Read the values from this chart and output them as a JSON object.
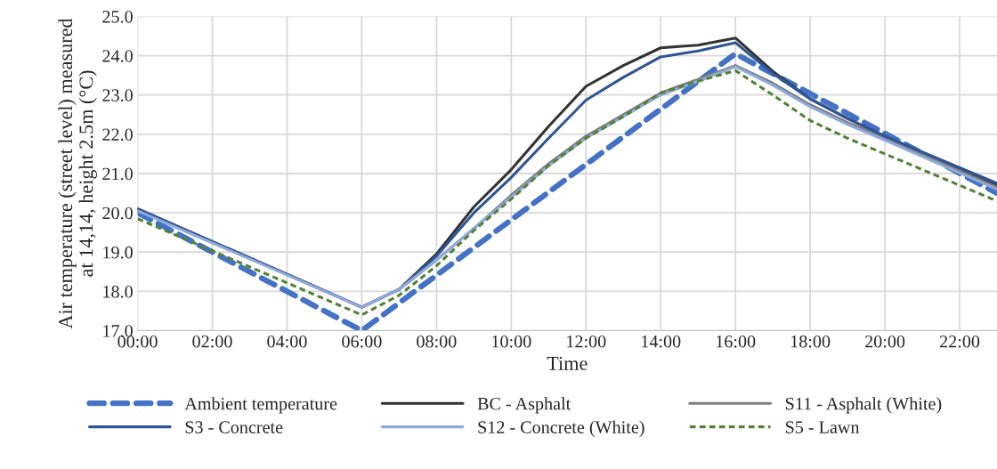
{
  "chart_data": {
    "type": "line",
    "xlabel": "Time",
    "ylabel": "Air temperature (street level) measured\nat 14,14, height 2.5m (°C)",
    "x": [
      0,
      6,
      7,
      8,
      9,
      10,
      11,
      12,
      13,
      14,
      15,
      16,
      17,
      18,
      19,
      20,
      23
    ],
    "xlim": [
      0,
      23
    ],
    "xticks": [
      {
        "value": 0,
        "label": "00:00"
      },
      {
        "value": 2,
        "label": "02:00"
      },
      {
        "value": 4,
        "label": "04:00"
      },
      {
        "value": 6,
        "label": "06:00"
      },
      {
        "value": 8,
        "label": "08:00"
      },
      {
        "value": 10,
        "label": "10:00"
      },
      {
        "value": 12,
        "label": "12:00"
      },
      {
        "value": 14,
        "label": "14:00"
      },
      {
        "value": 16,
        "label": "16:00"
      },
      {
        "value": 18,
        "label": "18:00"
      },
      {
        "value": 20,
        "label": "20:00"
      },
      {
        "value": 22,
        "label": "22:00"
      }
    ],
    "ylim": [
      17,
      25
    ],
    "yticks": [
      {
        "value": 17,
        "label": "17.0"
      },
      {
        "value": 18,
        "label": "18.0"
      },
      {
        "value": 19,
        "label": "19.0"
      },
      {
        "value": 20,
        "label": "20.0"
      },
      {
        "value": 21,
        "label": "21.0"
      },
      {
        "value": 22,
        "label": "22.0"
      },
      {
        "value": 23,
        "label": "23.0"
      },
      {
        "value": 24,
        "label": "24.0"
      },
      {
        "value": 25,
        "label": "25.0"
      }
    ],
    "grid": true,
    "legend": "bottom",
    "marker": "none",
    "series": [
      {
        "name": "Ambient temperature",
        "color": "#4472c4",
        "line_style": "dashed",
        "x": [
          0,
          6,
          16,
          23
        ],
        "values": [
          20.0,
          17.0,
          24.05,
          20.5
        ]
      },
      {
        "name": "BC - Asphalt",
        "color": "#333333",
        "line_style": "solid",
        "values": [
          20.1,
          17.6,
          18.05,
          18.95,
          20.15,
          21.1,
          22.2,
          23.22,
          23.75,
          24.2,
          24.27,
          24.45,
          23.6,
          22.9,
          22.4,
          21.95,
          20.7
        ]
      },
      {
        "name": "S11 - Asphalt (White)",
        "color": "#7f7f7f",
        "line_style": "solid",
        "values": [
          20.1,
          17.6,
          18.05,
          18.8,
          19.6,
          20.45,
          21.25,
          21.95,
          22.5,
          23.05,
          23.4,
          23.75,
          23.3,
          22.75,
          22.3,
          21.9,
          20.65
        ]
      },
      {
        "name": "S3 - Concrete",
        "color": "#2f5597",
        "line_style": "solid",
        "values": [
          20.1,
          17.6,
          18.05,
          18.9,
          20.0,
          20.9,
          21.9,
          22.87,
          23.45,
          23.97,
          24.12,
          24.33,
          23.55,
          22.9,
          22.4,
          21.95,
          20.75
        ]
      },
      {
        "name": "S12 - Concrete (White)",
        "color": "#8faadc",
        "line_style": "solid",
        "values": [
          20.05,
          17.6,
          18.05,
          18.8,
          19.6,
          20.4,
          21.2,
          21.9,
          22.45,
          23.0,
          23.35,
          23.72,
          23.25,
          22.7,
          22.25,
          21.85,
          20.6
        ]
      },
      {
        "name": "S5 - Lawn",
        "color": "#548235",
        "line_style": "dotted",
        "values": [
          19.85,
          17.4,
          17.9,
          18.65,
          19.55,
          20.35,
          21.2,
          21.9,
          22.45,
          23.05,
          23.35,
          23.62,
          23.0,
          22.35,
          21.9,
          21.5,
          20.3
        ]
      }
    ]
  }
}
